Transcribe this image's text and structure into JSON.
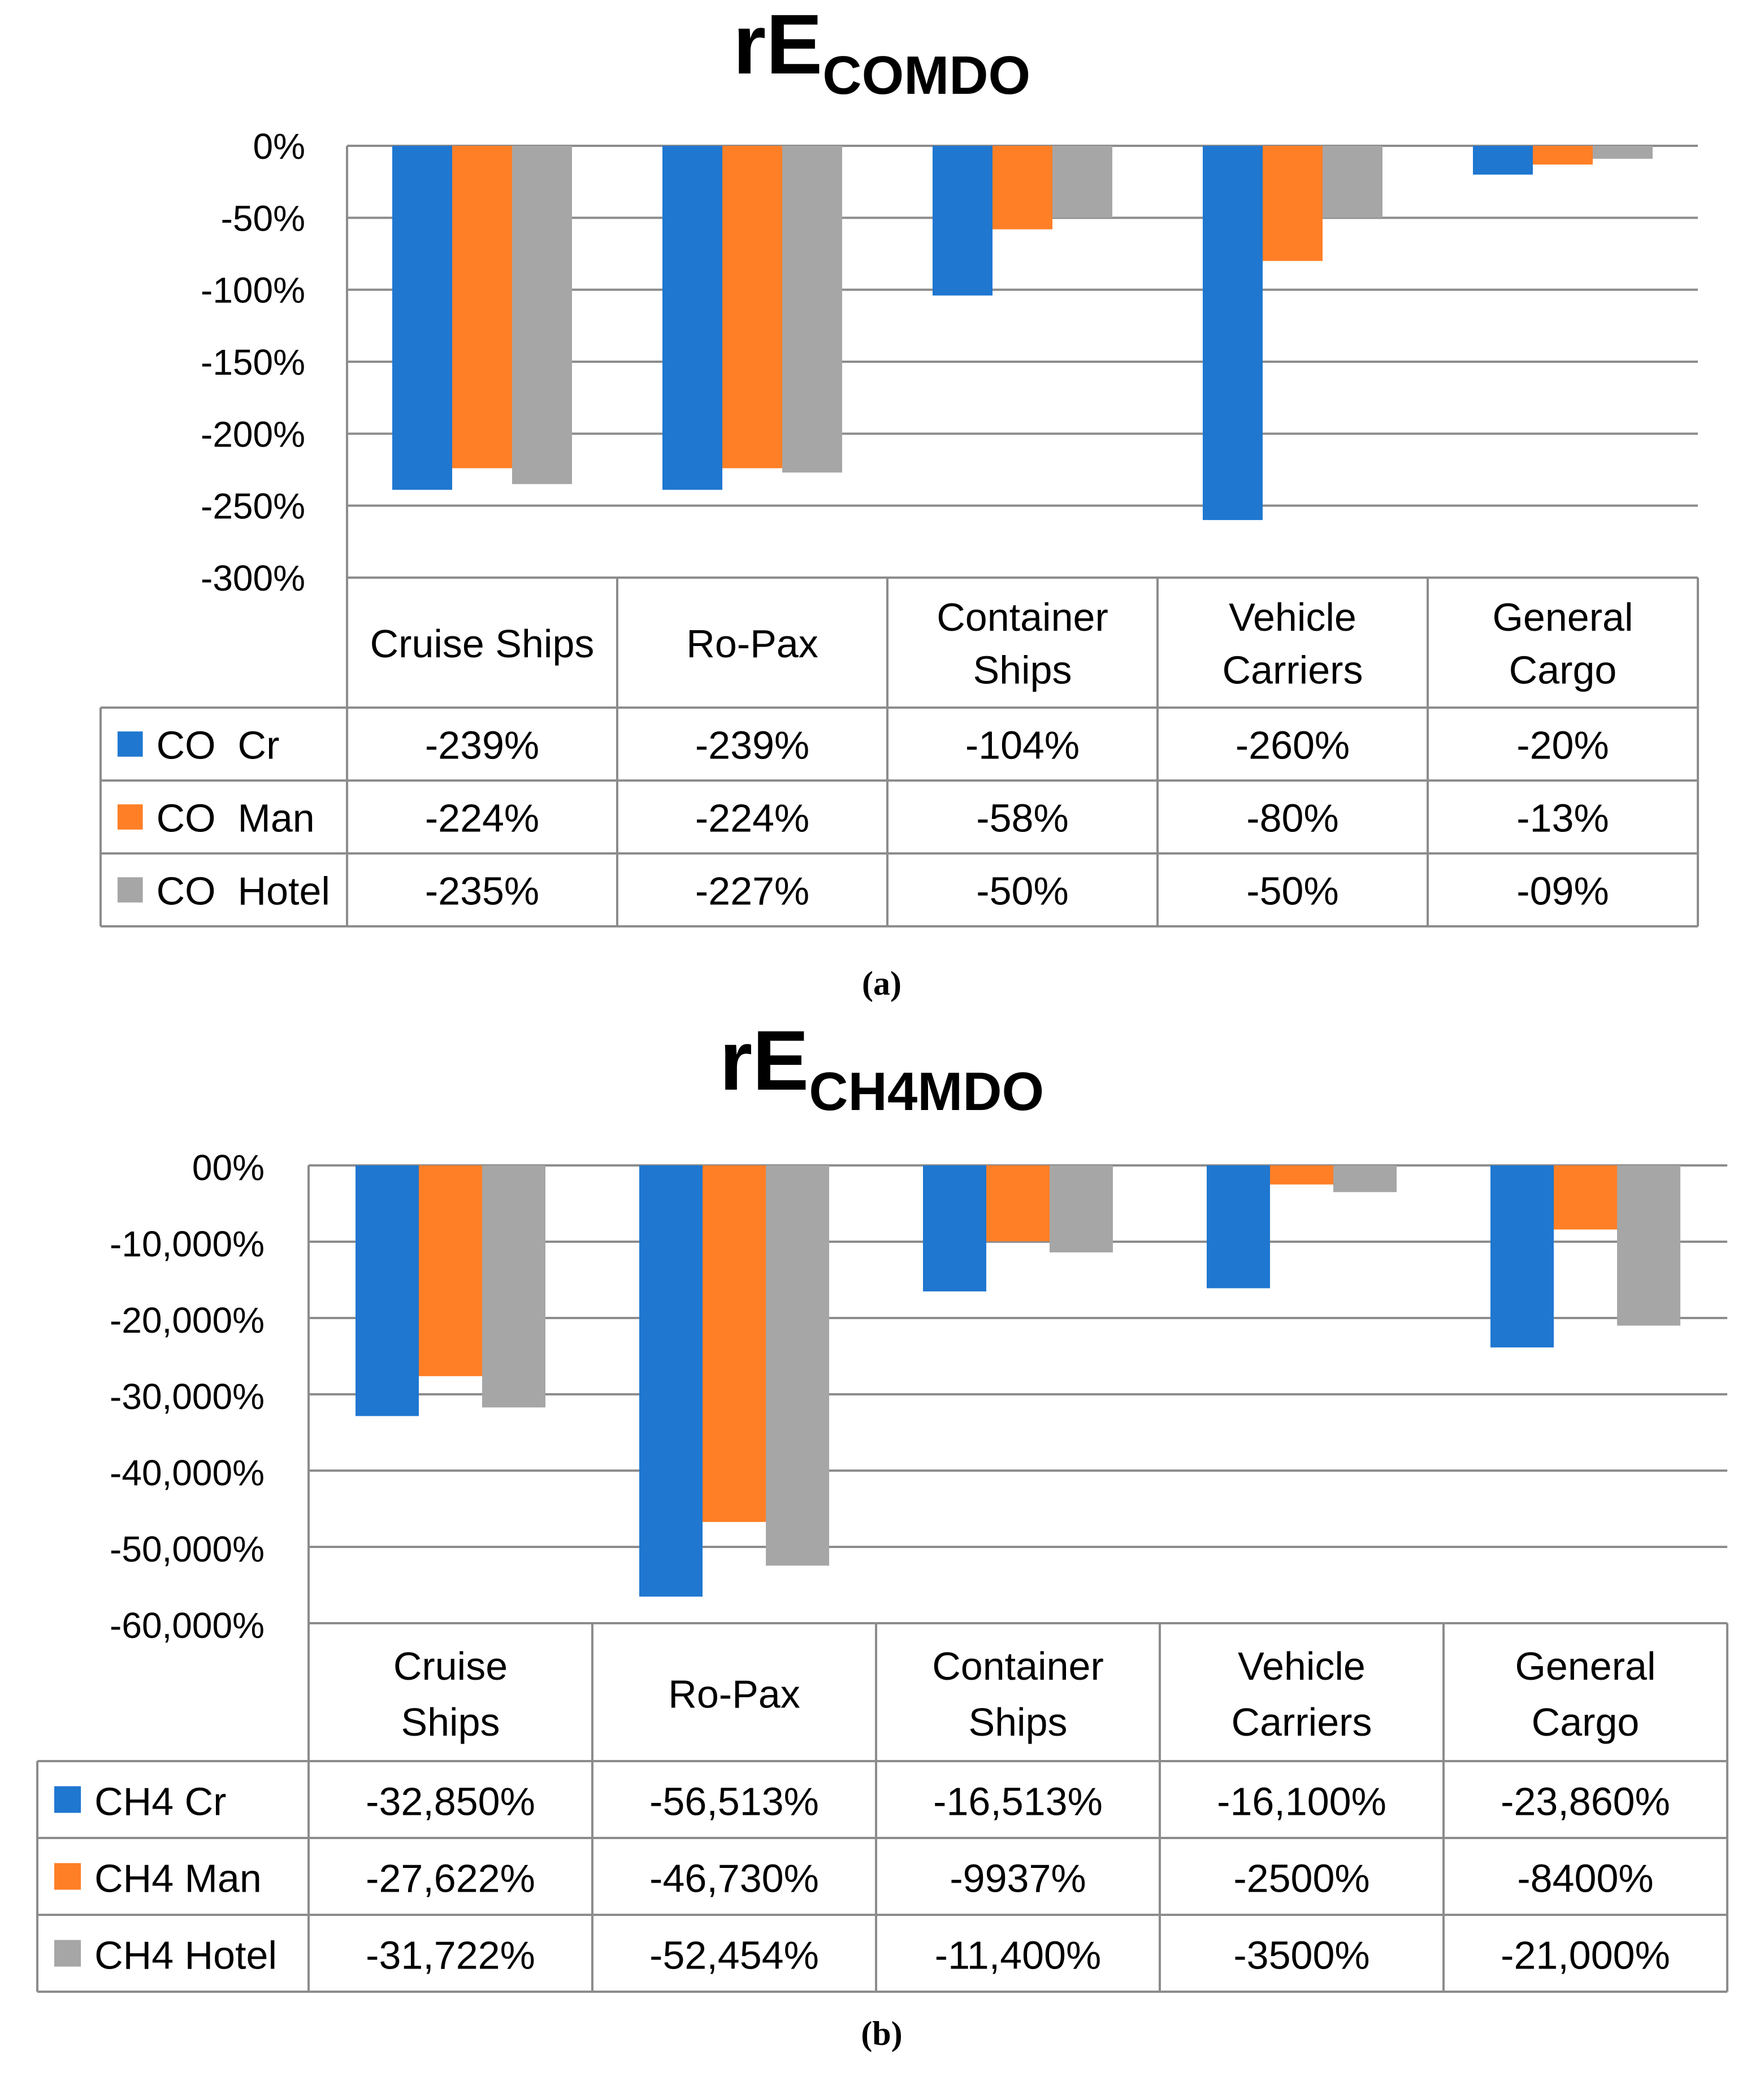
{
  "chart_data": [
    {
      "type": "bar",
      "title": "rE",
      "title_sub": "COMDO",
      "caption": "(a)",
      "categories": [
        [
          "Cruise Ships"
        ],
        [
          "Ro-Pax"
        ],
        [
          "Container",
          "Ships"
        ],
        [
          "Vehicle",
          "Carriers"
        ],
        [
          "General",
          "Cargo"
        ]
      ],
      "yticks": [
        0,
        -50,
        -100,
        -150,
        -200,
        -250,
        -300
      ],
      "ytick_labels": [
        "0%",
        "-50%",
        "-100%",
        "-150%",
        "-200%",
        "-250%",
        "-300%"
      ],
      "ylim": [
        -300,
        0
      ],
      "series": [
        {
          "name": "CO  Cr",
          "color": "#1f77d0",
          "values": [
            -239,
            -239,
            -104,
            -260,
            -20
          ],
          "labels": [
            "-239%",
            "-239%",
            "-104%",
            "-260%",
            "-20%"
          ]
        },
        {
          "name": "CO  Man",
          "color": "#ff7f27",
          "values": [
            -224,
            -224,
            -58,
            -80,
            -13
          ],
          "labels": [
            "-224%",
            "-224%",
            "-58%",
            "-80%",
            "-13%"
          ]
        },
        {
          "name": "CO  Hotel",
          "color": "#a6a6a6",
          "values": [
            -235,
            -227,
            -50,
            -50,
            -9
          ],
          "labels": [
            "-235%",
            "-227%",
            "-50%",
            "-50%",
            "-09%"
          ]
        }
      ],
      "grid": true,
      "legend": "data-table"
    },
    {
      "type": "bar",
      "title": "rE",
      "title_sub": "CH4MDO",
      "caption": "(b)",
      "categories": [
        [
          "Cruise",
          "Ships"
        ],
        [
          "Ro-Pax"
        ],
        [
          "Container",
          "Ships"
        ],
        [
          "Vehicle",
          "Carriers"
        ],
        [
          "General",
          "Cargo"
        ]
      ],
      "yticks": [
        0,
        -10000,
        -20000,
        -30000,
        -40000,
        -50000,
        -60000
      ],
      "ytick_labels": [
        "00%",
        "-10,000%",
        "-20,000%",
        "-30,000%",
        "-40,000%",
        "-50,000%",
        "-60,000%"
      ],
      "ylim": [
        -60000,
        0
      ],
      "series": [
        {
          "name": "CH4 Cr",
          "color": "#1f77d0",
          "values": [
            -32850,
            -56513,
            -16513,
            -16100,
            -23860
          ],
          "labels": [
            "-32,850%",
            "-56,513%",
            "-16,513%",
            "-16,100%",
            "-23,860%"
          ]
        },
        {
          "name": "CH4 Man",
          "color": "#ff7f27",
          "values": [
            -27622,
            -46730,
            -9937,
            -2500,
            -8400
          ],
          "labels": [
            "-27,622%",
            "-46,730%",
            "-9937%",
            "-2500%",
            "-8400%"
          ]
        },
        {
          "name": "CH4 Hotel",
          "color": "#a6a6a6",
          "values": [
            -31722,
            -52454,
            -11400,
            -3500,
            -21000
          ],
          "labels": [
            "-31,722%",
            "-52,454%",
            "-11,400%",
            "-3500%",
            "-21,000%"
          ]
        }
      ],
      "grid": true,
      "legend": "data-table"
    }
  ]
}
